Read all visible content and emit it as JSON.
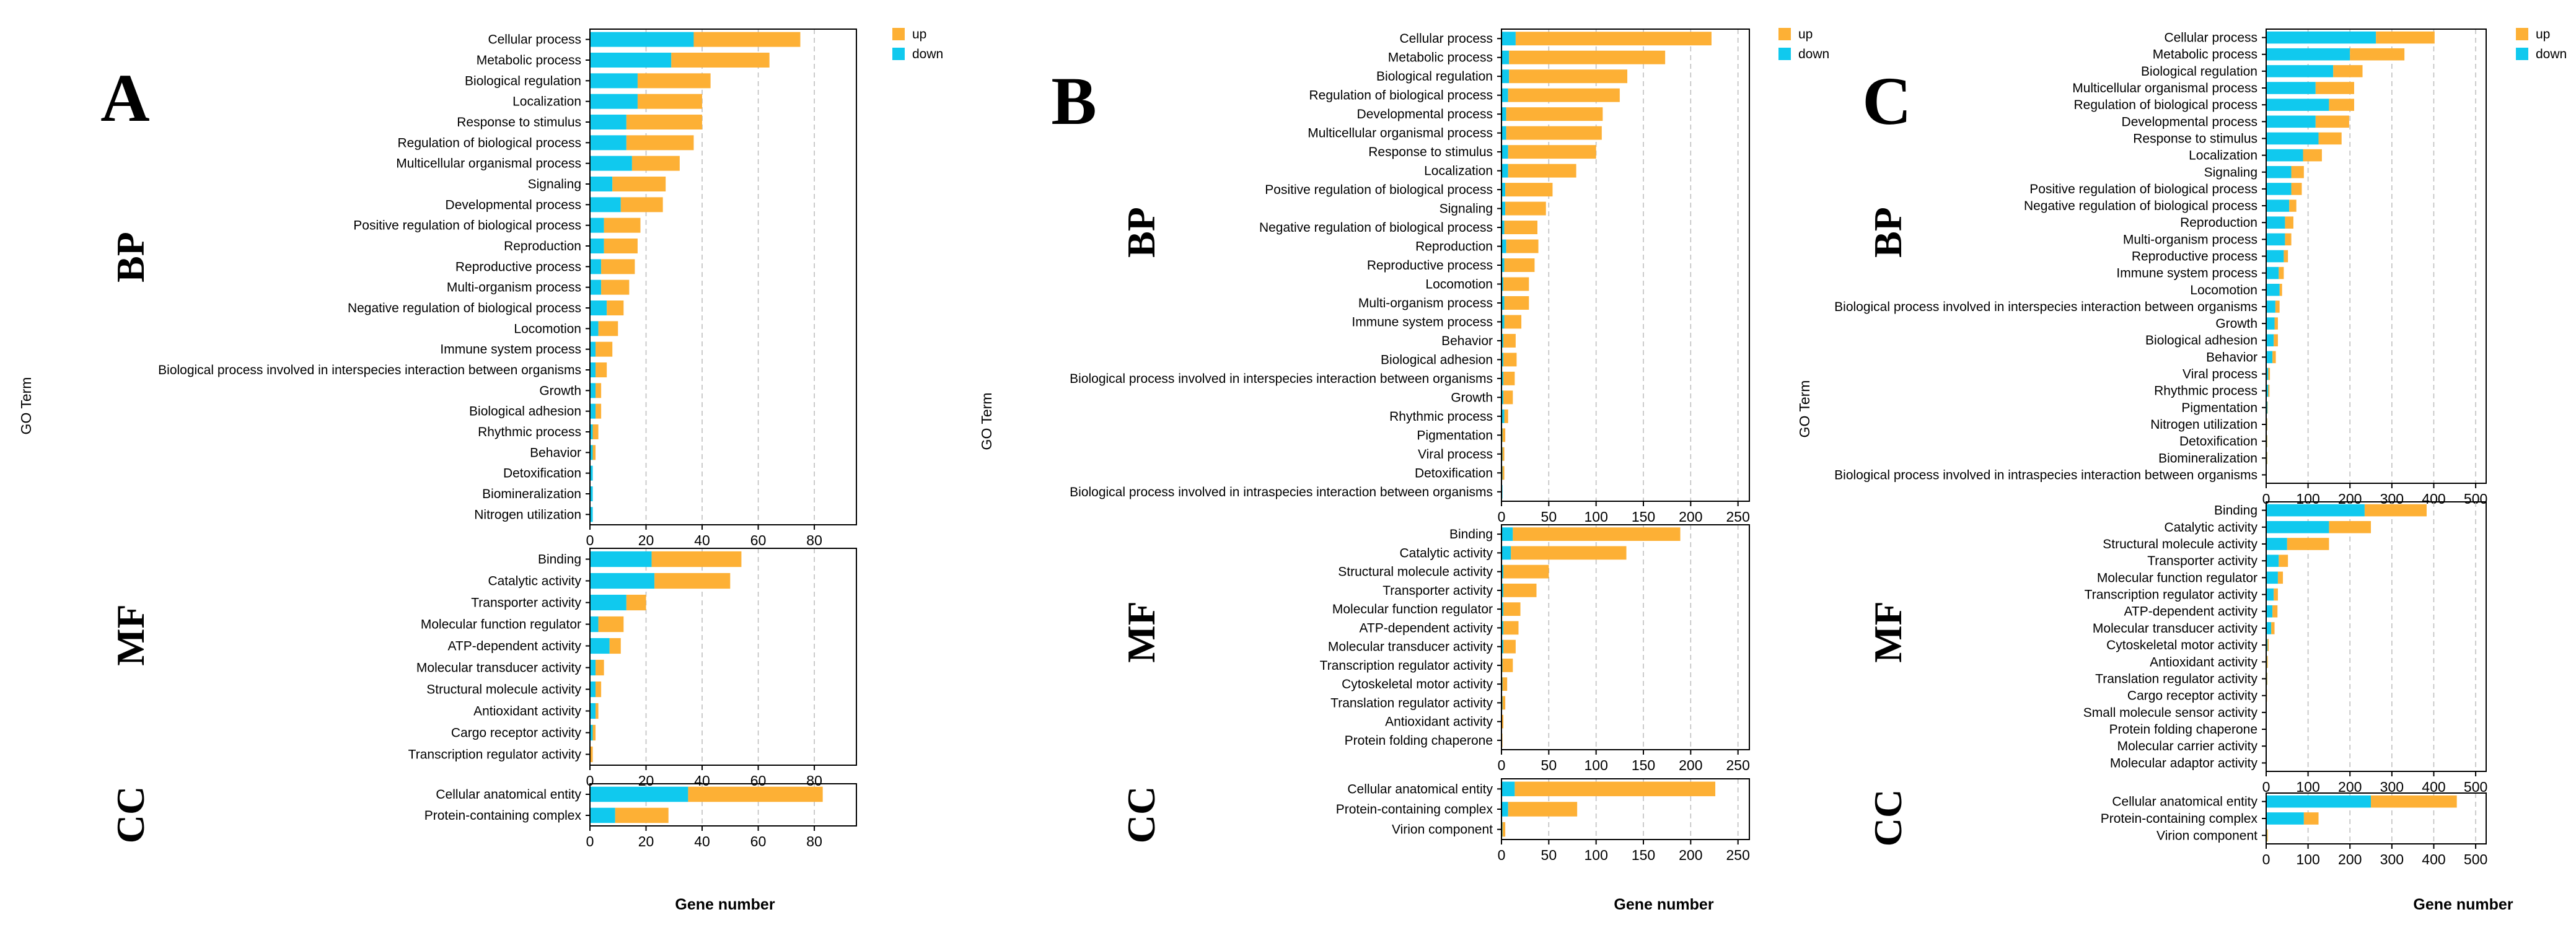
{
  "colors": {
    "up": "#FDB035",
    "down": "#10C9EE",
    "grid": "#BBBBBB",
    "axis": "#000000"
  },
  "chart_data": [
    {
      "type": "bar",
      "stacked": true,
      "orientation": "horizontal",
      "panel_letter": "A",
      "xlabel": "Gene number",
      "ylabel": "GO Term",
      "legend": [
        {
          "key": "up",
          "label": "up"
        },
        {
          "key": "down",
          "label": "down"
        }
      ],
      "legend_position": "right",
      "sections": [
        {
          "label": "BP",
          "xlim": [
            0,
            95
          ],
          "xticks": [
            0,
            20,
            40,
            60,
            80
          ],
          "categories": [
            "Cellular process",
            "Metabolic process",
            "Biological regulation",
            "Localization",
            "Response to stimulus",
            "Regulation of biological process",
            "Multicellular organismal process",
            "Signaling",
            "Developmental process",
            "Positive regulation of biological process",
            "Reproduction",
            "Reproductive process",
            "Multi-organism process",
            "Negative regulation of biological process",
            "Locomotion",
            "Immune system process",
            "Biological process involved in interspecies interaction between organisms",
            "Growth",
            "Biological adhesion",
            "Rhythmic process",
            "Behavior",
            "Detoxification",
            "Biomineralization",
            "Nitrogen utilization"
          ],
          "series": [
            {
              "name": "down",
              "values": [
                37,
                29,
                17,
                17,
                13,
                13,
                15,
                8,
                11,
                5,
                5,
                4,
                4,
                6,
                3,
                2,
                2,
                2,
                2,
                1,
                1,
                1,
                1,
                1
              ]
            },
            {
              "name": "up",
              "values": [
                38,
                35,
                26,
                23,
                27,
                24,
                17,
                19,
                15,
                13,
                12,
                12,
                10,
                6,
                7,
                6,
                4,
                2,
                2,
                2,
                1,
                0,
                0,
                0
              ]
            }
          ]
        },
        {
          "label": "MF",
          "xlim": [
            0,
            95
          ],
          "xticks": [
            0,
            20,
            40,
            60,
            80
          ],
          "categories": [
            "Binding",
            "Catalytic activity",
            "Transporter activity",
            "Molecular function regulator",
            "ATP-dependent activity",
            "Molecular transducer activity",
            "Structural molecule activity",
            "Antioxidant activity",
            "Cargo receptor activity",
            "Transcription regulator activity"
          ],
          "series": [
            {
              "name": "down",
              "values": [
                22,
                23,
                13,
                3,
                7,
                2,
                2,
                2,
                1,
                0
              ]
            },
            {
              "name": "up",
              "values": [
                32,
                27,
                7,
                9,
                4,
                3,
                2,
                1,
                1,
                1
              ]
            }
          ]
        },
        {
          "label": "CC",
          "xlim": [
            0,
            95
          ],
          "xticks": [
            0,
            20,
            40,
            60,
            80
          ],
          "categories": [
            "Cellular anatomical entity",
            "Protein-containing complex"
          ],
          "series": [
            {
              "name": "down",
              "values": [
                35,
                9
              ]
            },
            {
              "name": "up",
              "values": [
                48,
                19
              ]
            }
          ]
        }
      ]
    },
    {
      "type": "bar",
      "stacked": true,
      "orientation": "horizontal",
      "panel_letter": "B",
      "xlabel": "Gene number",
      "ylabel": "GO Term",
      "legend": [
        {
          "key": "up",
          "label": "up"
        },
        {
          "key": "down",
          "label": "down"
        }
      ],
      "legend_position": "right",
      "sections": [
        {
          "label": "BP",
          "xlim": [
            0,
            262
          ],
          "xticks": [
            0,
            50,
            100,
            150,
            200,
            250
          ],
          "categories": [
            "Cellular process",
            "Metabolic process",
            "Biological regulation",
            "Regulation of biological process",
            "Developmental process",
            "Multicellular organismal process",
            "Response to stimulus",
            "Localization",
            "Positive regulation of biological process",
            "Signaling",
            "Negative regulation of biological process",
            "Reproduction",
            "Reproductive process",
            "Locomotion",
            "Multi-organism process",
            "Immune system process",
            "Behavior",
            "Biological adhesion",
            "Biological process involved in interspecies interaction between organisms",
            "Growth",
            "Rhythmic process",
            "Pigmentation",
            "Viral process",
            "Detoxification",
            "Biological process involved in intraspecies interaction between organisms"
          ],
          "series": [
            {
              "name": "down",
              "values": [
                15,
                8,
                8,
                7,
                5,
                5,
                7,
                7,
                4,
                4,
                3,
                5,
                3,
                2,
                3,
                3,
                2,
                2,
                2,
                2,
                3,
                1,
                1,
                1,
                1
              ]
            },
            {
              "name": "up",
              "values": [
                207,
                165,
                125,
                118,
                102,
                101,
                93,
                72,
                50,
                43,
                35,
                34,
                32,
                27,
                26,
                18,
                13,
                14,
                12,
                10,
                4,
                3,
                2,
                2,
                0
              ]
            }
          ]
        },
        {
          "label": "MF",
          "xlim": [
            0,
            262
          ],
          "xticks": [
            0,
            50,
            100,
            150,
            200,
            250
          ],
          "categories": [
            "Binding",
            "Catalytic activity",
            "Structural molecule activity",
            "Transporter activity",
            "Molecular function regulator",
            "ATP-dependent activity",
            "Molecular transducer activity",
            "Transcription regulator activity",
            "Cytoskeletal motor activity",
            "Translation regulator activity",
            "Antioxidant activity",
            "Protein folding chaperone"
          ],
          "series": [
            {
              "name": "down",
              "values": [
                12,
                10,
                2,
                2,
                2,
                2,
                2,
                1,
                1,
                1,
                0,
                0
              ]
            },
            {
              "name": "up",
              "values": [
                177,
                122,
                48,
                35,
                18,
                16,
                13,
                11,
                5,
                3,
                2,
                1
              ]
            }
          ]
        },
        {
          "label": "CC",
          "xlim": [
            0,
            262
          ],
          "xticks": [
            0,
            50,
            100,
            150,
            200,
            250
          ],
          "categories": [
            "Cellular anatomical entity",
            "Protein-containing complex",
            "Virion component"
          ],
          "series": [
            {
              "name": "down",
              "values": [
                14,
                7,
                1
              ]
            },
            {
              "name": "up",
              "values": [
                212,
                73,
                3
              ]
            }
          ]
        }
      ]
    },
    {
      "type": "bar",
      "stacked": true,
      "orientation": "horizontal",
      "panel_letter": "C",
      "xlabel": "Gene number",
      "ylabel": "GO Term",
      "legend": [
        {
          "key": "up",
          "label": "up"
        },
        {
          "key": "down",
          "label": "down"
        }
      ],
      "legend_position": "right",
      "sections": [
        {
          "label": "BP",
          "xlim": [
            0,
            525
          ],
          "xticks": [
            0,
            100,
            200,
            300,
            400,
            500
          ],
          "categories": [
            "Cellular process",
            "Metabolic process",
            "Biological regulation",
            "Multicellular organismal process",
            "Regulation of biological process",
            "Developmental process",
            "Response to stimulus",
            "Localization",
            "Signaling",
            "Positive regulation of biological process",
            "Negative regulation of biological process",
            "Reproduction",
            "Multi-organism process",
            "Reproductive process",
            "Immune system process",
            "Locomotion",
            "Biological process involved in interspecies interaction between organisms",
            "Growth",
            "Biological adhesion",
            "Behavior",
            "Viral process",
            "Rhythmic process",
            "Pigmentation",
            "Nitrogen utilization",
            "Detoxification",
            "Biomineralization",
            "Biological process involved in intraspecies interaction between organisms"
          ],
          "series": [
            {
              "name": "down",
              "values": [
                262,
                200,
                160,
                118,
                150,
                118,
                125,
                88,
                60,
                60,
                55,
                45,
                45,
                42,
                30,
                32,
                22,
                20,
                18,
                15,
                5,
                5,
                3,
                2,
                2,
                2,
                1
              ]
            },
            {
              "name": "up",
              "values": [
                140,
                130,
                70,
                92,
                60,
                80,
                55,
                45,
                30,
                25,
                17,
                20,
                15,
                10,
                12,
                6,
                10,
                8,
                10,
                8,
                4,
                3,
                1,
                1,
                1,
                1,
                0
              ]
            }
          ]
        },
        {
          "label": "MF",
          "xlim": [
            0,
            525
          ],
          "xticks": [
            0,
            100,
            200,
            300,
            400,
            500
          ],
          "categories": [
            "Binding",
            "Catalytic activity",
            "Structural molecule activity",
            "Transporter activity",
            "Molecular function regulator",
            "Transcription regulator activity",
            "ATP-dependent activity",
            "Molecular transducer activity",
            "Cytoskeletal motor activity",
            "Antioxidant activity",
            "Translation regulator activity",
            "Cargo receptor activity",
            "Small molecule sensor activity",
            "Protein folding chaperone",
            "Molecular carrier activity",
            "Molecular adaptor activity"
          ],
          "series": [
            {
              "name": "down",
              "values": [
                235,
                150,
                50,
                30,
                28,
                18,
                15,
                12,
                3,
                2,
                2,
                1,
                1,
                1,
                1,
                1
              ]
            },
            {
              "name": "up",
              "values": [
                148,
                100,
                100,
                22,
                12,
                10,
                12,
                8,
                3,
                2,
                1,
                1,
                0,
                0,
                0,
                0
              ]
            }
          ]
        },
        {
          "label": "CC",
          "xlim": [
            0,
            525
          ],
          "xticks": [
            0,
            100,
            200,
            300,
            400,
            500
          ],
          "categories": [
            "Cellular anatomical entity",
            "Protein-containing complex",
            "Virion component"
          ],
          "series": [
            {
              "name": "down",
              "values": [
                250,
                90,
                2
              ]
            },
            {
              "name": "up",
              "values": [
                205,
                35,
                2
              ]
            }
          ]
        }
      ]
    }
  ]
}
